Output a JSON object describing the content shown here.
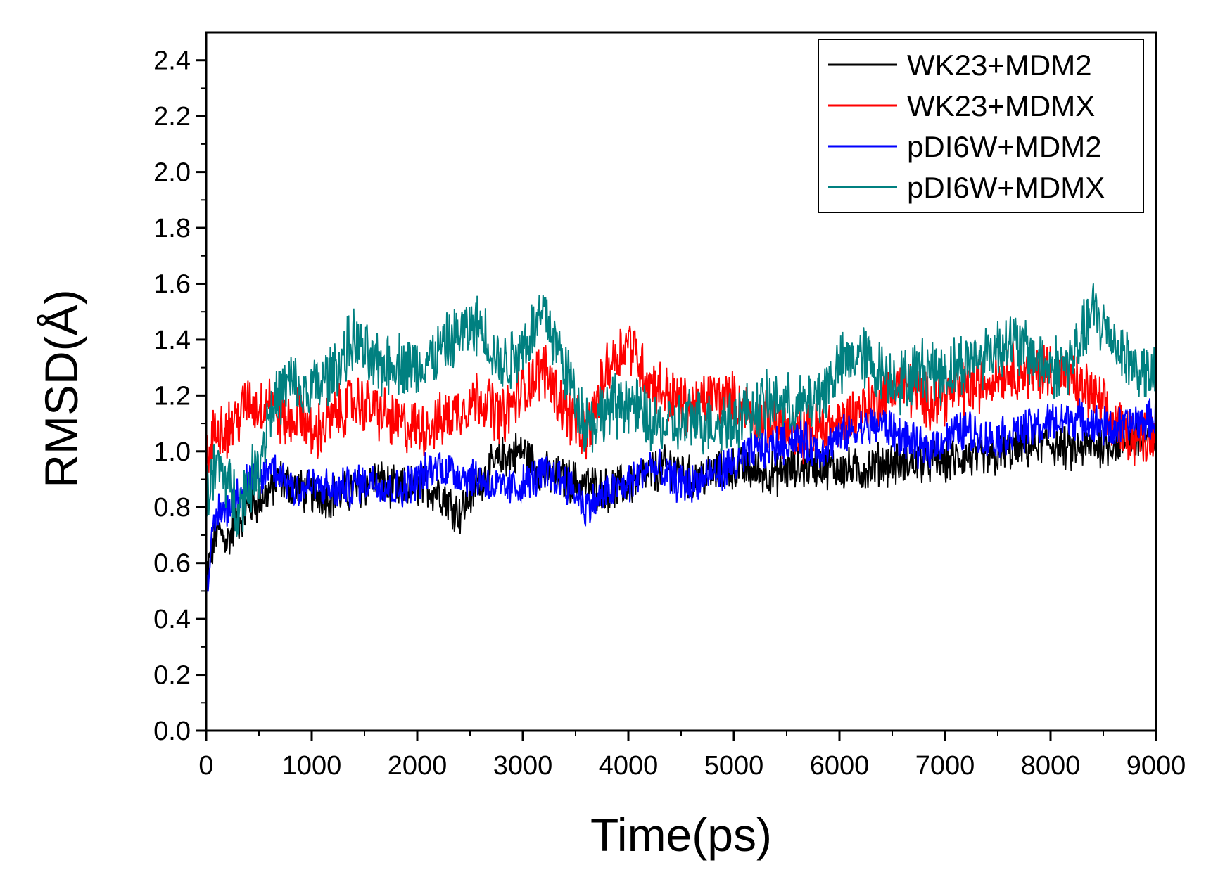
{
  "chart_data": {
    "type": "line",
    "title": "",
    "xlabel": "Time(ps)",
    "ylabel": "RMSD(Å)",
    "xlim": [
      0,
      9000
    ],
    "ylim": [
      0.0,
      2.5
    ],
    "x_ticks": [
      0,
      1000,
      2000,
      3000,
      4000,
      5000,
      6000,
      7000,
      8000,
      9000
    ],
    "x_tick_labels": [
      "0",
      "1000",
      "2000",
      "3000",
      "4000",
      "5000",
      "6000",
      "7000",
      "8000",
      "9000"
    ],
    "y_ticks": [
      0.0,
      0.2,
      0.4,
      0.6,
      0.8,
      1.0,
      1.2,
      1.4,
      1.6,
      1.8,
      2.0,
      2.2,
      2.4
    ],
    "y_tick_labels": [
      "0.0",
      "0.2",
      "0.4",
      "0.6",
      "0.8",
      "1.0",
      "1.2",
      "1.4",
      "1.6",
      "1.8",
      "2.0",
      "2.2",
      "2.4"
    ],
    "grid": false,
    "legend_position": "top-right",
    "series": [
      {
        "name": "WK23+MDM2",
        "color": "#000000",
        "x": [
          0,
          100,
          200,
          300,
          400,
          500,
          600,
          700,
          800,
          900,
          1000,
          1200,
          1400,
          1600,
          1800,
          2000,
          2200,
          2400,
          2600,
          2800,
          3000,
          3200,
          3400,
          3600,
          3800,
          4000,
          4200,
          4400,
          4600,
          4800,
          5000,
          5200,
          5400,
          5600,
          5800,
          6000,
          6200,
          6400,
          6600,
          6800,
          7000,
          7200,
          7400,
          7600,
          7800,
          8000,
          8200,
          8400,
          8600,
          8800,
          9000
        ],
        "y": [
          0.55,
          0.72,
          0.68,
          0.75,
          0.8,
          0.82,
          0.86,
          0.9,
          0.88,
          0.86,
          0.85,
          0.84,
          0.86,
          0.9,
          0.86,
          0.88,
          0.86,
          0.78,
          0.9,
          0.98,
          1.0,
          0.92,
          0.9,
          0.88,
          0.86,
          0.88,
          0.92,
          0.95,
          0.9,
          0.92,
          0.94,
          0.93,
          0.92,
          0.94,
          0.95,
          0.94,
          0.93,
          0.96,
          0.95,
          0.97,
          0.96,
          0.98,
          0.97,
          1.0,
          1.02,
          1.03,
          1.0,
          1.02,
          1.03,
          1.04,
          1.05
        ]
      },
      {
        "name": "WK23+MDMX",
        "color": "#ff0000",
        "x": [
          0,
          100,
          200,
          300,
          400,
          500,
          600,
          700,
          800,
          900,
          1000,
          1200,
          1400,
          1600,
          1800,
          2000,
          2200,
          2400,
          2600,
          2800,
          3000,
          3200,
          3400,
          3600,
          3800,
          4000,
          4200,
          4400,
          4600,
          4800,
          5000,
          5200,
          5400,
          5600,
          5800,
          6000,
          6200,
          6400,
          6600,
          6800,
          7000,
          7200,
          7400,
          7600,
          7800,
          8000,
          8200,
          8400,
          8600,
          8800,
          9000
        ],
        "y": [
          0.95,
          1.1,
          1.08,
          1.12,
          1.18,
          1.15,
          1.2,
          1.12,
          1.1,
          1.15,
          1.05,
          1.12,
          1.18,
          1.15,
          1.1,
          1.08,
          1.1,
          1.15,
          1.2,
          1.12,
          1.22,
          1.3,
          1.15,
          1.05,
          1.3,
          1.4,
          1.25,
          1.2,
          1.15,
          1.2,
          1.18,
          1.12,
          1.1,
          1.05,
          1.08,
          1.1,
          1.15,
          1.2,
          1.25,
          1.18,
          1.2,
          1.22,
          1.25,
          1.3,
          1.28,
          1.3,
          1.25,
          1.2,
          1.1,
          1.05,
          1.08
        ]
      },
      {
        "name": "pDI6W+MDM2",
        "color": "#0000ff",
        "x": [
          0,
          100,
          200,
          300,
          400,
          500,
          600,
          700,
          800,
          900,
          1000,
          1200,
          1400,
          1600,
          1800,
          2000,
          2200,
          2400,
          2600,
          2800,
          3000,
          3200,
          3400,
          3600,
          3800,
          4000,
          4200,
          4400,
          4600,
          4800,
          5000,
          5200,
          5400,
          5600,
          5800,
          6000,
          6200,
          6400,
          6600,
          6800,
          7000,
          7200,
          7400,
          7600,
          7800,
          8000,
          8200,
          8400,
          8600,
          8800,
          9000
        ],
        "y": [
          0.52,
          0.78,
          0.8,
          0.85,
          0.9,
          0.88,
          0.95,
          0.92,
          0.88,
          0.86,
          0.88,
          0.86,
          0.88,
          0.9,
          0.86,
          0.9,
          0.95,
          0.92,
          0.9,
          0.86,
          0.88,
          0.92,
          0.9,
          0.8,
          0.85,
          0.88,
          0.95,
          0.9,
          0.88,
          0.92,
          0.95,
          1.0,
          1.02,
          1.05,
          1.0,
          1.05,
          1.08,
          1.1,
          1.05,
          1.0,
          1.05,
          1.08,
          1.04,
          1.06,
          1.08,
          1.1,
          1.12,
          1.1,
          1.08,
          1.1,
          1.12
        ]
      },
      {
        "name": "pDI6W+MDMX",
        "color": "#008080",
        "x": [
          0,
          100,
          200,
          300,
          400,
          500,
          600,
          700,
          800,
          900,
          1000,
          1200,
          1400,
          1600,
          1800,
          2000,
          2200,
          2400,
          2600,
          2800,
          3000,
          3200,
          3400,
          3600,
          3800,
          4000,
          4200,
          4400,
          4600,
          4800,
          5000,
          5200,
          5400,
          5600,
          5800,
          6000,
          6200,
          6400,
          6600,
          6800,
          7000,
          7200,
          7400,
          7600,
          7800,
          8000,
          8200,
          8400,
          8600,
          8800,
          9000
        ],
        "y": [
          0.85,
          0.95,
          0.9,
          0.8,
          0.88,
          0.95,
          1.15,
          1.2,
          1.25,
          1.2,
          1.22,
          1.28,
          1.4,
          1.3,
          1.32,
          1.3,
          1.35,
          1.42,
          1.45,
          1.3,
          1.38,
          1.5,
          1.3,
          1.1,
          1.15,
          1.18,
          1.1,
          1.08,
          1.12,
          1.1,
          1.12,
          1.15,
          1.18,
          1.15,
          1.2,
          1.3,
          1.35,
          1.28,
          1.25,
          1.3,
          1.28,
          1.32,
          1.35,
          1.4,
          1.35,
          1.3,
          1.32,
          1.5,
          1.4,
          1.3,
          1.25
        ]
      }
    ]
  }
}
